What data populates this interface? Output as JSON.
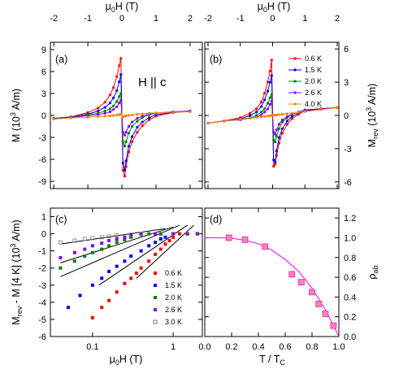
{
  "chart_data": [
    {
      "type": "line",
      "panel_label": "(a)",
      "annotation": "H || c",
      "xlabel": [
        "μ",
        "0",
        "H (T)"
      ],
      "ylabel": [
        "M (10",
        "3",
        " A/m)"
      ],
      "xlim": [
        -2.1,
        2.36
      ],
      "xticks": [
        -2,
        -1,
        0,
        1,
        2
      ],
      "ylim": [
        -10,
        10
      ],
      "yticks": [
        -9,
        -6,
        -3,
        0,
        3,
        6,
        9
      ],
      "x": [
        -2,
        -1.5,
        -1,
        -0.7,
        -0.5,
        -0.35,
        -0.25,
        -0.15,
        -0.08,
        -0.03,
        0.03,
        0.08,
        0.12,
        0.2,
        0.3,
        0.45,
        0.6,
        0.8,
        1.0,
        1.5,
        2
      ],
      "series": [
        {
          "name": "0.6 K",
          "color": "#ff0000",
          "values": [
            -0.4,
            -0.2,
            0.4,
            1.0,
            1.8,
            2.8,
            3.8,
            5.3,
            6.8,
            7.8,
            -7.5,
            -8.3,
            -7.0,
            -5.0,
            -3.6,
            -2.3,
            -1.4,
            -0.6,
            -0.1,
            0.4,
            0.6
          ]
        },
        {
          "name": "1.5 K",
          "color": "#0000ff",
          "values": [
            -0.4,
            -0.2,
            0.2,
            0.6,
            1.1,
            1.7,
            2.4,
            3.4,
            4.6,
            5.6,
            -6.5,
            -7.5,
            -6.2,
            -4.2,
            -2.9,
            -1.6,
            -0.9,
            -0.3,
            0.1,
            0.4,
            0.6
          ]
        },
        {
          "name": "2.0 K",
          "color": "#008000",
          "values": [
            -0.4,
            -0.2,
            0.1,
            0.3,
            0.6,
            0.9,
            1.3,
            1.9,
            2.6,
            3.0,
            -3.6,
            -4.2,
            -3.6,
            -2.4,
            -1.5,
            -0.8,
            -0.3,
            0.1,
            0.3,
            0.5,
            0.6
          ]
        },
        {
          "name": "2.6 K",
          "color": "#8000ff",
          "values": [
            -0.4,
            -0.25,
            -0.05,
            0.1,
            0.3,
            0.5,
            0.8,
            1.2,
            1.7,
            2.1,
            -2.3,
            -2.7,
            -2.3,
            -1.5,
            -0.9,
            -0.4,
            -0.1,
            0.2,
            0.3,
            0.5,
            0.6
          ]
        },
        {
          "name": "4.0 K",
          "color": "#ff8000",
          "values": [
            -0.5,
            -0.35,
            -0.25,
            -0.15,
            -0.1,
            -0.05,
            0,
            0.05,
            0.1,
            0.2,
            -0.2,
            -0.1,
            -0.05,
            0,
            0.05,
            0.15,
            0.2,
            0.3,
            0.35,
            0.45,
            0.5
          ]
        }
      ]
    },
    {
      "type": "line",
      "panel_label": "(b)",
      "legend": "upper right",
      "xlabel": [
        "μ",
        "0",
        "H (T)"
      ],
      "ylabel": [
        "M",
        "rev",
        " (10",
        "3",
        " A/m)"
      ],
      "xlim": [
        -2.1,
        2.05
      ],
      "xticks": [
        -2,
        -1,
        0,
        1,
        2
      ],
      "ylim": [
        -6.6,
        6.6
      ],
      "yticks": [
        -6,
        -3,
        0,
        3,
        6
      ],
      "x": [
        -2,
        -1.5,
        -1,
        -0.7,
        -0.5,
        -0.35,
        -0.25,
        -0.15,
        -0.08,
        -0.03,
        0.03,
        0.08,
        0.12,
        0.2,
        0.3,
        0.45,
        0.6,
        0.8,
        1.0,
        1.5,
        2
      ],
      "series": [
        {
          "name": "0.6 K",
          "color": "#ff0000",
          "values": [
            -0.7,
            -0.5,
            -0.2,
            0.2,
            0.6,
            1.2,
            2.0,
            3.0,
            4.0,
            5.0,
            -4.6,
            -4.4,
            -3.6,
            -2.5,
            -1.6,
            -0.8,
            -0.3,
            0.1,
            0.4,
            0.6,
            0.7
          ]
        },
        {
          "name": "1.5 K",
          "color": "#0000ff",
          "values": [
            -0.7,
            -0.5,
            -0.3,
            0,
            0.3,
            0.8,
            1.4,
            2.2,
            3.0,
            3.6,
            -4.0,
            -4.2,
            -3.2,
            -2.0,
            -1.2,
            -0.5,
            -0.1,
            0.2,
            0.4,
            0.6,
            0.7
          ]
        },
        {
          "name": "2.0 K",
          "color": "#008000",
          "values": [
            -0.7,
            -0.5,
            -0.35,
            -0.2,
            0,
            0.3,
            0.6,
            1.1,
            1.6,
            1.9,
            -2.2,
            -2.4,
            -1.9,
            -1.2,
            -0.6,
            -0.2,
            0.1,
            0.3,
            0.5,
            0.6,
            0.7
          ]
        },
        {
          "name": "2.6 K",
          "color": "#8000ff",
          "values": [
            -0.7,
            -0.5,
            -0.4,
            -0.25,
            -0.15,
            0.05,
            0.3,
            0.6,
            1.0,
            1.3,
            -1.5,
            -1.7,
            -1.3,
            -0.8,
            -0.4,
            -0.1,
            0.1,
            0.3,
            0.5,
            0.6,
            0.7
          ]
        },
        {
          "name": "4.0 K",
          "color": "#ff8000",
          "values": [
            -0.7,
            -0.52,
            -0.35,
            -0.25,
            -0.18,
            -0.12,
            -0.09,
            -0.05,
            -0.03,
            -0.01,
            0.01,
            0.03,
            0.04,
            0.07,
            0.1,
            0.16,
            0.21,
            0.28,
            0.35,
            0.52,
            0.7
          ]
        }
      ]
    },
    {
      "type": "scatter",
      "panel_label": "(c)",
      "legend": "lower right",
      "xlog": true,
      "xlabel": [
        "μ",
        "0",
        "H (T)"
      ],
      "ylabel": [
        "M",
        "rev",
        " - M [4 K] (10",
        "3",
        " A/m)"
      ],
      "xlim": [
        0.03,
        2.3
      ],
      "xticks": [
        0.1,
        1
      ],
      "ylim": [
        -6,
        1.5
      ],
      "yticks": [
        -6,
        -5,
        -4,
        -3,
        -2,
        -1,
        0,
        1
      ],
      "series": [
        {
          "name": "0.6 K",
          "color": "#ff0000",
          "marker": "square",
          "x": [
            0.1,
            0.13,
            0.16,
            0.2,
            0.25,
            0.3,
            0.35,
            0.4,
            0.5,
            0.6,
            0.7,
            0.8,
            0.9,
            1.0,
            1.2,
            1.5,
            2.0
          ],
          "values": [
            -4.9,
            -4.3,
            -3.9,
            -3.4,
            -2.9,
            -2.6,
            -2.3,
            -2.0,
            -1.6,
            -1.2,
            -0.9,
            -0.6,
            -0.4,
            -0.2,
            0,
            0,
            0
          ]
        },
        {
          "name": "1.5 K",
          "color": "#0000ff",
          "marker": "square",
          "x": [
            0.05,
            0.07,
            0.1,
            0.13,
            0.16,
            0.2,
            0.25,
            0.3,
            0.4,
            0.5,
            0.6,
            0.7,
            0.8,
            1.0,
            1.5,
            2.0
          ],
          "values": [
            -4.3,
            -3.6,
            -3.0,
            -2.6,
            -2.2,
            -1.9,
            -1.6,
            -1.3,
            -1.0,
            -0.7,
            -0.5,
            -0.3,
            -0.2,
            0,
            0,
            0
          ]
        },
        {
          "name": "2.0 K",
          "color": "#008000",
          "marker": "square",
          "x": [
            0.04,
            0.06,
            0.08,
            0.1,
            0.13,
            0.16,
            0.2,
            0.25,
            0.3,
            0.4,
            0.5,
            0.7,
            1.0,
            1.5,
            2.0
          ],
          "values": [
            -2.0,
            -1.6,
            -1.3,
            -1.1,
            -0.9,
            -0.7,
            -0.5,
            -0.35,
            -0.2,
            -0.05,
            0,
            0,
            0,
            0,
            0
          ]
        },
        {
          "name": "2.6 K",
          "color": "#8000ff",
          "marker": "square",
          "x": [
            0.04,
            0.06,
            0.08,
            0.1,
            0.13,
            0.16,
            0.2,
            0.25,
            0.3,
            0.4,
            0.6,
            1.0,
            1.5,
            2.0
          ],
          "values": [
            -1.4,
            -1.1,
            -0.9,
            -0.7,
            -0.55,
            -0.4,
            -0.3,
            -0.2,
            -0.1,
            0,
            0,
            0,
            0,
            0
          ]
        },
        {
          "name": "3.0 K",
          "color": "#808080",
          "marker": "open-square",
          "x": [
            0.04,
            0.06,
            0.08,
            0.1,
            0.13,
            0.16,
            0.2,
            0.3,
            0.4,
            0.7,
            1.0,
            1.5,
            2.0
          ],
          "values": [
            -0.5,
            -0.4,
            -0.3,
            -0.25,
            -0.2,
            -0.15,
            -0.1,
            -0.05,
            0,
            0,
            0,
            0,
            0
          ]
        }
      ],
      "fits": [
        {
          "color": "#000000",
          "x": [
            0.35,
            1.8
          ],
          "values": [
            -2.6,
            0.5
          ]
        },
        {
          "color": "#000000",
          "x": [
            0.12,
            1.5
          ],
          "values": [
            -3.0,
            0.5
          ]
        },
        {
          "color": "#000000",
          "x": [
            0.04,
            1.2
          ],
          "values": [
            -2.5,
            0.5
          ]
        },
        {
          "color": "#000000",
          "x": [
            0.04,
            1.0
          ],
          "values": [
            -1.7,
            0.4
          ]
        },
        {
          "color": "#000000",
          "x": [
            0.04,
            0.8
          ],
          "values": [
            -0.6,
            0.3
          ]
        }
      ]
    },
    {
      "type": "scatter",
      "panel_label": "(d)",
      "xlabel": [
        "T / T",
        "C"
      ],
      "ylabel": [
        "ρ",
        "ab"
      ],
      "xlim": [
        0,
        1
      ],
      "xticks": [
        {
          "value": 0,
          "label": "0.0"
        },
        0.2,
        0.4,
        0.6,
        0.8,
        {
          "value": 1,
          "label": "1.0"
        }
      ],
      "ylim": [
        0,
        1.3
      ],
      "yticks": [
        {
          "value": 0,
          "label": "0.0"
        },
        0.2,
        0.4,
        0.6,
        0.8,
        {
          "value": 1,
          "label": "1.0"
        },
        1.2
      ],
      "series": [
        {
          "color": "#ff80c0",
          "marker": "square",
          "x": [
            0.18,
            0.3,
            0.45,
            0.65,
            0.72,
            0.8,
            0.85,
            0.9,
            0.96
          ],
          "values": [
            1.0,
            0.98,
            0.91,
            0.63,
            0.55,
            0.45,
            0.33,
            0.23,
            0.11
          ]
        }
      ],
      "fits": [
        {
          "color": "#ff00ff",
          "x": [
            0,
            0.1,
            0.2,
            0.3,
            0.4,
            0.5,
            0.6,
            0.7,
            0.8,
            0.9,
            1.0
          ],
          "values": [
            1.0,
            1.0,
            0.995,
            0.975,
            0.94,
            0.875,
            0.78,
            0.66,
            0.49,
            0.27,
            0
          ]
        }
      ]
    }
  ]
}
